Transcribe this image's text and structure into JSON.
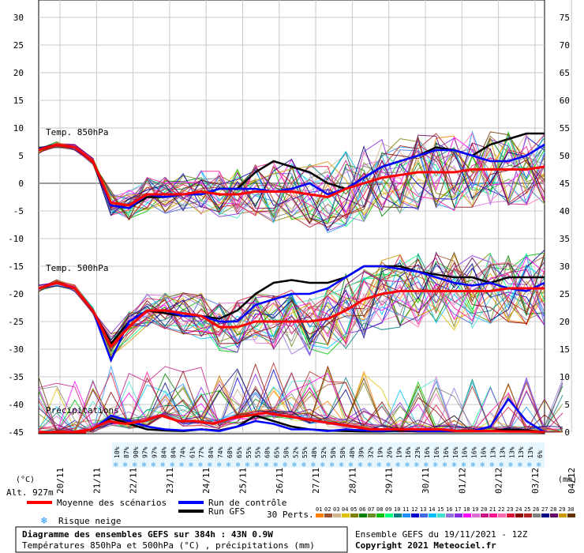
{
  "chart_data": {
    "type": "line",
    "title": "Diagramme des ensembles GEFS sur 384h : 43N 0.9W",
    "subtitle": "Températures 850hPa et 500hPa (°C) , précipitations (mm)",
    "run_info": "Ensemble GEFS du 19/11/2021 - 12Z",
    "copyright": "Copyright 2021 Meteociel.fr",
    "left_axis_label": "(°C)",
    "right_axis_label": "(mm)",
    "altitude": "Alt. 927m",
    "left_ticks": [
      30,
      25,
      20,
      15,
      10,
      5,
      0,
      -5,
      -10,
      -15,
      -20,
      -25,
      -30,
      -35,
      -40,
      -45
    ],
    "right_ticks": [
      75,
      70,
      65,
      60,
      55,
      50,
      45,
      40,
      35,
      30,
      25,
      20,
      15,
      10,
      5,
      0
    ],
    "ylim_left": [
      -45,
      30
    ],
    "dates": [
      "20/11",
      "21/11",
      "22/11",
      "23/11",
      "24/11",
      "25/11",
      "26/11",
      "27/11",
      "28/11",
      "29/11",
      "30/11",
      "01/12",
      "02/12",
      "03/12",
      "04/12",
      "05/12"
    ],
    "panel_labels": {
      "t850": "Temp. 850hPa",
      "t500": "Temp. 500hPa",
      "precip": "Précipitations"
    },
    "snow_risk_pct": [
      "10%",
      "87%",
      "90%",
      "97%",
      "97%",
      "84%",
      "84%",
      "74%",
      "61%",
      "77%",
      "84%",
      "74%",
      "68%",
      "65%",
      "55%",
      "55%",
      "68%",
      "65%",
      "58%",
      "52%",
      "55%",
      "48%",
      "52%",
      "58%",
      "58%",
      "48%",
      "39%",
      "32%",
      "19%",
      "26%",
      "19%",
      "16%",
      "23%",
      "16%",
      "16%",
      "16%",
      "16%",
      "16%",
      "16%",
      "16%",
      "13%",
      "13%",
      "13%",
      "13%",
      "13%",
      "6%"
    ],
    "legend": {
      "mean": "Moyenne des scénarios",
      "control": "Run de contrôle",
      "gfs": "Run GFS",
      "snow": "Risque neige",
      "perts": "30 Perts.",
      "pert_numbers": [
        "01",
        "02",
        "03",
        "04",
        "05",
        "06",
        "07",
        "08",
        "09",
        "10",
        "11",
        "12",
        "13",
        "14",
        "15",
        "16",
        "17",
        "18",
        "19",
        "20",
        "21",
        "22",
        "23",
        "24",
        "25",
        "26",
        "27",
        "28",
        "29",
        "30"
      ],
      "pert_colors": [
        "#ff7f00",
        "#a0522d",
        "#d2b48c",
        "#e0c000",
        "#808000",
        "#008000",
        "#6b8e23",
        "#00c000",
        "#00ff7f",
        "#008080",
        "#1e90ff",
        "#0000cd",
        "#4169e1",
        "#00bfff",
        "#40e0d0",
        "#9370db",
        "#8a2be2",
        "#ff00ff",
        "#da70d6",
        "#c71585",
        "#ff1493",
        "#ff69b4",
        "#dc143c",
        "#8b0000",
        "#b22222",
        "#808080",
        "#000080",
        "#660066",
        "#cc9900",
        "#663300"
      ]
    },
    "series": [
      {
        "name": "Moyenne des scénarios",
        "color": "#ff0000",
        "t850": [
          6,
          7,
          6.5,
          4,
          -3.5,
          -4,
          -2,
          -2,
          -2,
          -1.5,
          -2,
          -2,
          -1.5,
          -1.5,
          -1.5,
          -2,
          -2.5,
          -1,
          0,
          1,
          1.5,
          2,
          2,
          2,
          2.5,
          2.5,
          2.5,
          2.5,
          3
        ],
        "t500": [
          -19,
          -18,
          -19,
          -23,
          -29.5,
          -26,
          -23,
          -23,
          -23.5,
          -24,
          -26,
          -26,
          -25,
          -25,
          -25,
          -25,
          -24.5,
          -23,
          -21,
          -20,
          -19.5,
          -19.5,
          -19.5,
          -19.5,
          -19.5,
          -19.5,
          -19,
          -19,
          -19
        ],
        "precip": [
          0,
          0,
          0,
          0.5,
          2,
          1.5,
          2,
          3,
          2,
          2,
          1.5,
          2.5,
          3,
          3.5,
          3,
          2.5,
          2,
          1.5,
          1,
          0.5,
          0.5,
          0.5,
          0.5,
          0.5,
          0.2,
          0.2,
          0.2,
          0.1,
          0.1,
          0
        ]
      },
      {
        "name": "Run de contrôle",
        "color": "#0000ff",
        "t850": [
          6,
          7,
          6.5,
          4,
          -4,
          -4.5,
          -2,
          -2.5,
          -2,
          -2,
          -1,
          -1,
          -1,
          -1.5,
          -1,
          0,
          -2,
          -1,
          1,
          3,
          4,
          5,
          6,
          6,
          5,
          4,
          4,
          5,
          7
        ],
        "t500": [
          -19,
          -18,
          -19,
          -23,
          -32,
          -25,
          -23,
          -23,
          -24,
          -24,
          -25,
          -25,
          -22,
          -21,
          -20,
          -20,
          -19,
          -17,
          -15,
          -15,
          -15.5,
          -16,
          -17,
          -18,
          -18.5,
          -18,
          -19,
          -19.5,
          -18
        ],
        "precip": [
          0,
          0,
          0,
          0.5,
          3,
          2,
          1,
          0.5,
          0.3,
          0.5,
          0.2,
          1,
          2,
          1.5,
          0.5,
          0.5,
          0.2,
          0.5,
          0.3,
          0.2,
          0.5,
          0.2,
          0.2,
          0.2,
          0.2,
          1,
          6,
          2,
          0
        ]
      },
      {
        "name": "Run GFS",
        "color": "#000000",
        "t850": [
          6,
          7,
          6.5,
          4,
          -4,
          -4.5,
          -2.5,
          -2.5,
          -2,
          -2,
          -1,
          -1,
          2,
          4,
          3,
          2,
          0,
          -1,
          1,
          3,
          4,
          5,
          6.5,
          6,
          5,
          7,
          8,
          9,
          9
        ],
        "t500": [
          -19,
          -18,
          -19,
          -23,
          -29,
          -25,
          -23,
          -23.5,
          -24,
          -24,
          -24.5,
          -23,
          -20,
          -18,
          -17.5,
          -18,
          -18,
          -17,
          -15,
          -15,
          -15,
          -16,
          -16.5,
          -17,
          -17,
          -18,
          -17,
          -17,
          -17
        ],
        "precip": [
          0,
          0,
          0,
          0.5,
          2.5,
          1.5,
          0.5,
          0.3,
          0.2,
          0.5,
          0.3,
          1,
          3,
          2,
          1,
          0.5,
          0.3,
          0.2,
          0.1,
          0.1,
          0.3,
          0.1,
          0.1,
          0.1,
          0.1,
          0.2,
          0.5,
          0.3,
          0
        ]
      }
    ]
  }
}
